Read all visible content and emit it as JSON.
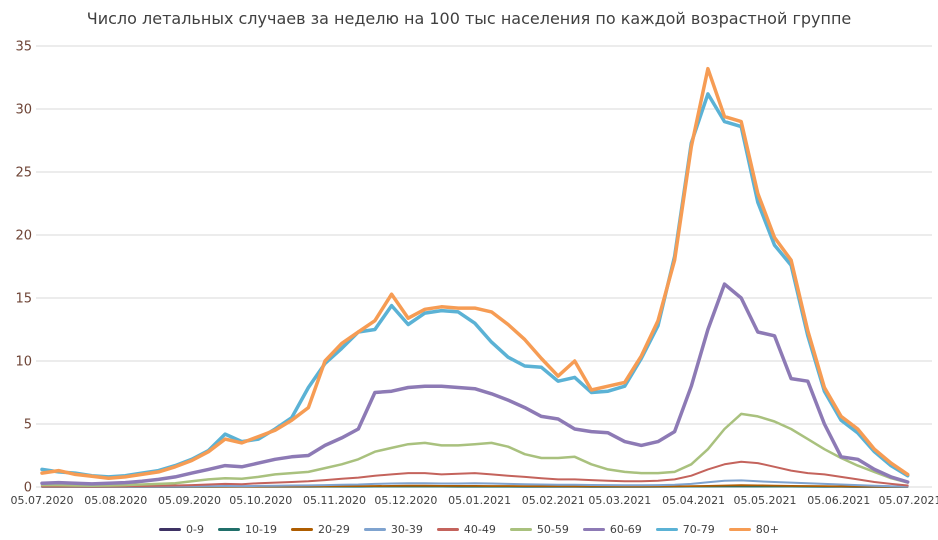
{
  "chart_data": {
    "type": "line",
    "title": "Число летальных случаев за неделю на 100 тыс населения по каждой возрастной группе",
    "xlabel": "",
    "ylabel": "",
    "x_unit": "weeks since 05.07.2020",
    "x_range": [
      0,
      52.14
    ],
    "y_range": [
      0,
      35
    ],
    "y_ticks": [
      0,
      5,
      10,
      15,
      20,
      25,
      30,
      35
    ],
    "grid": "horizontal",
    "legend_position": "bottom",
    "x_tick_labels": [
      "05.07.2020",
      "05.08.2020",
      "05.09.2020",
      "05.10.2020",
      "05.11.2020",
      "05.12.2020",
      "05.01.2021",
      "05.02.2021",
      "05.03.2021",
      "05.04.2021",
      "05.05.2021",
      "05.06.2021",
      "05.07.2021"
    ],
    "x_tick_positions": [
      0,
      4.43,
      8.86,
      13.14,
      17.57,
      21.86,
      26.29,
      30.71,
      34.71,
      39.14,
      43.43,
      47.86,
      52.14
    ],
    "colors": {
      "background": "#ffffff",
      "grid": "#d9d9d9",
      "title": "#404040",
      "x_tick_labels": "#404040",
      "y_tick_labels": "#6e4436"
    },
    "series": [
      {
        "name": "0-9",
        "color": "#3e3264",
        "line_width": 1.8,
        "values": [
          0.01,
          0.01,
          0.01,
          0.01,
          0.01,
          0.01,
          0.01,
          0.01,
          0.01,
          0.02,
          0.02,
          0.02,
          0.02,
          0.02,
          0.02,
          0.02,
          0.02,
          0.03,
          0.03,
          0.03,
          0.03,
          0.04,
          0.04,
          0.04,
          0.03,
          0.03,
          0.03,
          0.03,
          0.03,
          0.02,
          0.02,
          0.02,
          0.02,
          0.02,
          0.02,
          0.02,
          0.02,
          0.02,
          0.03,
          0.04,
          0.05,
          0.05,
          0.05,
          0.04,
          0.04,
          0.03,
          0.03,
          0.02,
          0.02,
          0.01,
          0.01,
          0.01,
          0.01
        ]
      },
      {
        "name": "10-19",
        "color": "#206f6a",
        "line_width": 1.8,
        "values": [
          0.01,
          0.01,
          0.01,
          0.01,
          0.01,
          0.01,
          0.01,
          0.01,
          0.01,
          0.01,
          0.01,
          0.02,
          0.02,
          0.02,
          0.02,
          0.02,
          0.02,
          0.02,
          0.02,
          0.02,
          0.03,
          0.03,
          0.03,
          0.03,
          0.03,
          0.02,
          0.02,
          0.02,
          0.02,
          0.02,
          0.02,
          0.02,
          0.02,
          0.01,
          0.01,
          0.01,
          0.01,
          0.02,
          0.02,
          0.03,
          0.03,
          0.04,
          0.04,
          0.03,
          0.03,
          0.03,
          0.02,
          0.02,
          0.02,
          0.01,
          0.01,
          0.01,
          0.01
        ]
      },
      {
        "name": "20-29",
        "color": "#ae5d00",
        "line_width": 1.8,
        "values": [
          0.01,
          0.01,
          0.01,
          0.01,
          0.01,
          0.01,
          0.01,
          0.01,
          0.02,
          0.02,
          0.02,
          0.03,
          0.03,
          0.03,
          0.04,
          0.04,
          0.05,
          0.05,
          0.06,
          0.07,
          0.08,
          0.09,
          0.1,
          0.1,
          0.09,
          0.09,
          0.09,
          0.08,
          0.08,
          0.07,
          0.06,
          0.06,
          0.05,
          0.05,
          0.05,
          0.04,
          0.04,
          0.05,
          0.05,
          0.07,
          0.09,
          0.12,
          0.14,
          0.13,
          0.11,
          0.09,
          0.08,
          0.07,
          0.05,
          0.04,
          0.03,
          0.02,
          0.01
        ]
      },
      {
        "name": "30-39",
        "color": "#7fa3cf",
        "line_width": 2,
        "values": [
          0.02,
          0.02,
          0.02,
          0.02,
          0.02,
          0.02,
          0.03,
          0.03,
          0.04,
          0.05,
          0.06,
          0.08,
          0.07,
          0.09,
          0.1,
          0.12,
          0.13,
          0.15,
          0.18,
          0.2,
          0.25,
          0.28,
          0.3,
          0.3,
          0.28,
          0.28,
          0.3,
          0.28,
          0.25,
          0.22,
          0.2,
          0.18,
          0.18,
          0.16,
          0.15,
          0.14,
          0.14,
          0.15,
          0.18,
          0.25,
          0.38,
          0.5,
          0.52,
          0.45,
          0.4,
          0.35,
          0.3,
          0.25,
          0.2,
          0.15,
          0.1,
          0.06,
          0.03
        ]
      },
      {
        "name": "40-49",
        "color": "#c4635c",
        "line_width": 2,
        "values": [
          0.05,
          0.06,
          0.05,
          0.04,
          0.05,
          0.06,
          0.08,
          0.1,
          0.12,
          0.15,
          0.2,
          0.25,
          0.22,
          0.3,
          0.35,
          0.4,
          0.45,
          0.55,
          0.65,
          0.75,
          0.9,
          1.0,
          1.1,
          1.1,
          1.0,
          1.05,
          1.1,
          1.0,
          0.9,
          0.8,
          0.7,
          0.6,
          0.6,
          0.55,
          0.5,
          0.45,
          0.45,
          0.5,
          0.6,
          0.9,
          1.4,
          1.8,
          2.0,
          1.9,
          1.6,
          1.3,
          1.1,
          1.0,
          0.8,
          0.6,
          0.4,
          0.25,
          0.12
        ]
      },
      {
        "name": "50-59",
        "color": "#a9c17e",
        "line_width": 2.5,
        "values": [
          0.15,
          0.15,
          0.12,
          0.1,
          0.12,
          0.15,
          0.2,
          0.25,
          0.3,
          0.45,
          0.6,
          0.7,
          0.65,
          0.8,
          1.0,
          1.1,
          1.2,
          1.5,
          1.8,
          2.2,
          2.8,
          3.1,
          3.4,
          3.5,
          3.3,
          3.3,
          3.4,
          3.5,
          3.2,
          2.6,
          2.3,
          2.3,
          2.4,
          1.8,
          1.4,
          1.2,
          1.1,
          1.1,
          1.2,
          1.8,
          3.0,
          4.6,
          5.8,
          5.6,
          5.2,
          4.6,
          3.8,
          3.0,
          2.3,
          1.7,
          1.2,
          0.7,
          0.35
        ]
      },
      {
        "name": "60-69",
        "color": "#8d7ab5",
        "line_width": 3.5,
        "values": [
          0.3,
          0.35,
          0.3,
          0.25,
          0.3,
          0.35,
          0.45,
          0.6,
          0.8,
          1.1,
          1.4,
          1.7,
          1.6,
          1.9,
          2.2,
          2.4,
          2.5,
          3.3,
          3.9,
          4.6,
          7.5,
          7.6,
          7.9,
          8.0,
          8.0,
          7.9,
          7.8,
          7.4,
          6.9,
          6.3,
          5.6,
          5.4,
          4.6,
          4.4,
          4.3,
          3.6,
          3.3,
          3.6,
          4.4,
          8.0,
          12.5,
          16.1,
          15.0,
          12.3,
          12.0,
          8.6,
          8.4,
          5.0,
          2.4,
          2.2,
          1.4,
          0.8,
          0.4
        ]
      },
      {
        "name": "70-79",
        "color": "#5bb2d5",
        "line_width": 3.5,
        "values": [
          1.4,
          1.2,
          1.1,
          0.9,
          0.8,
          0.9,
          1.1,
          1.3,
          1.7,
          2.2,
          2.9,
          4.2,
          3.6,
          3.8,
          4.6,
          5.5,
          7.9,
          9.8,
          11.0,
          12.3,
          12.5,
          14.4,
          12.9,
          13.8,
          14.0,
          13.9,
          13.0,
          11.5,
          10.3,
          9.6,
          9.5,
          8.4,
          8.7,
          7.5,
          7.6,
          8.0,
          10.2,
          12.8,
          18.3,
          27.3,
          31.2,
          29.0,
          28.6,
          22.6,
          19.2,
          17.6,
          12.0,
          7.6,
          5.3,
          4.3,
          2.8,
          1.7,
          0.9
        ]
      },
      {
        "name": "80+",
        "color": "#f69c54",
        "line_width": 3.5,
        "values": [
          1.1,
          1.3,
          1.0,
          0.85,
          0.7,
          0.8,
          1.0,
          1.2,
          1.6,
          2.1,
          2.8,
          3.8,
          3.5,
          4.0,
          4.5,
          5.3,
          6.3,
          10.0,
          11.4,
          12.3,
          13.2,
          15.3,
          13.4,
          14.1,
          14.3,
          14.2,
          14.2,
          13.9,
          12.9,
          11.7,
          10.2,
          8.8,
          10.0,
          7.7,
          8.0,
          8.3,
          10.4,
          13.2,
          18.0,
          27.0,
          33.2,
          29.4,
          29.0,
          23.3,
          19.8,
          18.0,
          12.4,
          7.9,
          5.6,
          4.6,
          3.0,
          1.9,
          1.0
        ]
      }
    ]
  }
}
